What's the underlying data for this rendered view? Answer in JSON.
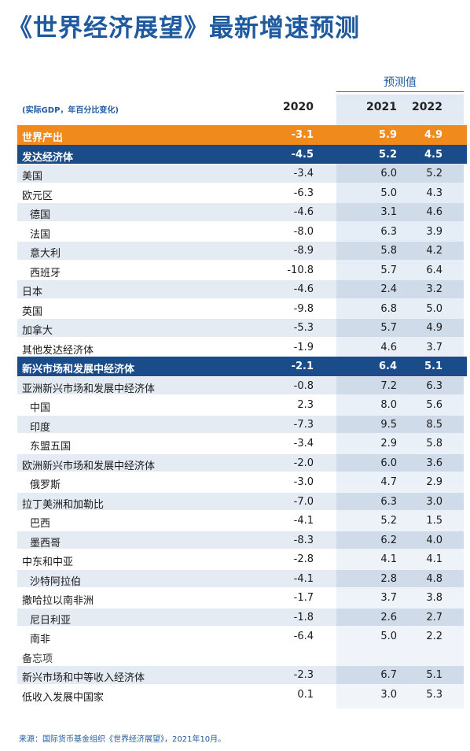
{
  "title": "《世界经济展望》最新增速预测",
  "projection_label": "预测值",
  "unit_label": "(实际GDP，年百分比变化)",
  "years": [
    "2020",
    "2021",
    "2022"
  ],
  "rows": [
    {
      "name": "世界产出",
      "style": "world",
      "v": [
        "-3.1",
        "5.9",
        "4.9"
      ]
    },
    {
      "name": "发达经济体",
      "style": "adv",
      "v": [
        "-4.5",
        "5.2",
        "4.5"
      ]
    },
    {
      "name": "美国",
      "style": "stripe",
      "v": [
        "-3.4",
        "6.0",
        "5.2"
      ]
    },
    {
      "name": "欧元区",
      "style": "plain",
      "v": [
        "-6.3",
        "5.0",
        "4.3"
      ]
    },
    {
      "name": "德国",
      "style": "stripe",
      "indent": true,
      "v": [
        "-4.6",
        "3.1",
        "4.6"
      ]
    },
    {
      "name": "法国",
      "style": "plain",
      "indent": true,
      "v": [
        "-8.0",
        "6.3",
        "3.9"
      ]
    },
    {
      "name": "意大利",
      "style": "stripe",
      "indent": true,
      "v": [
        "-8.9",
        "5.8",
        "4.2"
      ]
    },
    {
      "name": "西班牙",
      "style": "plain",
      "indent": true,
      "v": [
        "-10.8",
        "5.7",
        "6.4"
      ]
    },
    {
      "name": "日本",
      "style": "stripe",
      "v": [
        "-4.6",
        "2.4",
        "3.2"
      ]
    },
    {
      "name": "英国",
      "style": "plain",
      "v": [
        "-9.8",
        "6.8",
        "5.0"
      ]
    },
    {
      "name": "加拿大",
      "style": "stripe",
      "v": [
        "-5.3",
        "5.7",
        "4.9"
      ]
    },
    {
      "name": "其他发达经济体",
      "style": "plain",
      "v": [
        "-1.9",
        "4.6",
        "3.7"
      ]
    },
    {
      "name": "新兴市场和发展中经济体",
      "style": "adv",
      "v": [
        "-2.1",
        "6.4",
        "5.1"
      ]
    },
    {
      "name": "亚洲新兴市场和发展中经济体",
      "style": "stripe",
      "v": [
        "-0.8",
        "7.2",
        "6.3"
      ]
    },
    {
      "name": "中国",
      "style": "plain",
      "indent": true,
      "v": [
        "2.3",
        "8.0",
        "5.6"
      ]
    },
    {
      "name": "印度",
      "style": "stripe",
      "indent": true,
      "v": [
        "-7.3",
        "9.5",
        "8.5"
      ]
    },
    {
      "name": "东盟五国",
      "style": "plain",
      "indent": true,
      "v": [
        "-3.4",
        "2.9",
        "5.8"
      ]
    },
    {
      "name": "欧洲新兴市场和发展中经济体",
      "style": "stripe",
      "v": [
        "-2.0",
        "6.0",
        "3.6"
      ]
    },
    {
      "name": "俄罗斯",
      "style": "plain",
      "indent": true,
      "v": [
        "-3.0",
        "4.7",
        "2.9"
      ]
    },
    {
      "name": "拉丁美洲和加勒比",
      "style": "stripe",
      "v": [
        "-7.0",
        "6.3",
        "3.0"
      ]
    },
    {
      "name": "巴西",
      "style": "plain",
      "indent": true,
      "v": [
        "-4.1",
        "5.2",
        "1.5"
      ]
    },
    {
      "name": "墨西哥",
      "style": "stripe",
      "indent": true,
      "v": [
        "-8.3",
        "6.2",
        "4.0"
      ]
    },
    {
      "name": "中东和中亚",
      "style": "plain",
      "v": [
        "-2.8",
        "4.1",
        "4.1"
      ]
    },
    {
      "name": "沙特阿拉伯",
      "style": "stripe",
      "indent": true,
      "v": [
        "-4.1",
        "2.8",
        "4.8"
      ]
    },
    {
      "name": "撒哈拉以南非洲",
      "style": "plain",
      "v": [
        "-1.7",
        "3.7",
        "3.8"
      ]
    },
    {
      "name": "尼日利亚",
      "style": "stripe",
      "indent": true,
      "v": [
        "-1.8",
        "2.6",
        "2.7"
      ]
    },
    {
      "name": "南非",
      "style": "plain",
      "indent": true,
      "v": [
        "-6.4",
        "5.0",
        "2.2"
      ]
    },
    {
      "name": "备忘项",
      "style": "memo",
      "v": [
        "",
        "",
        ""
      ]
    },
    {
      "name": "新兴市场和中等收入经济体",
      "style": "stripe",
      "v": [
        "-2.3",
        "6.7",
        "5.1"
      ]
    },
    {
      "name": "低收入发展中国家",
      "style": "plain",
      "v": [
        "0.1",
        "3.0",
        "5.3"
      ]
    }
  ],
  "source": "来源：国际货币基金组织《世界经济展望》，2021年10月。",
  "colors": {
    "title": "#1f5a9e",
    "world_row": "#f08a1c",
    "group_row": "#1a4c8a",
    "stripe": "#e4ebf3"
  }
}
